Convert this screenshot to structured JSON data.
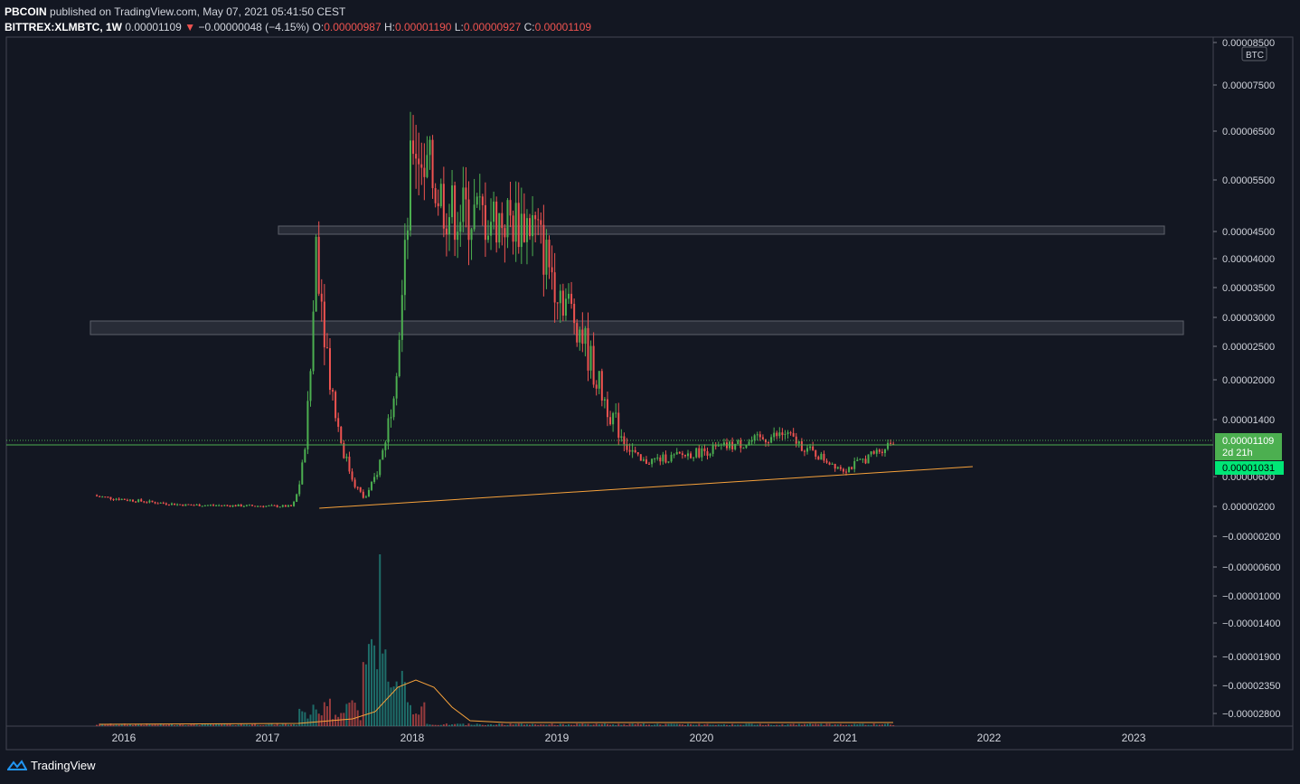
{
  "header": {
    "author": "PBCOIN",
    "published_text": "published on TradingView.com, May 07, 2021 05:41:50 CEST",
    "symbol": "BITTREX:XLMBTC, 1W",
    "last": "0.00001109",
    "change_arrow": "▼",
    "change": "−0.00000048 (−4.15%)",
    "o_label": "O:",
    "o": "0.00000987",
    "h_label": "H:",
    "h": "0.00001190",
    "l_label": "L:",
    "l": "0.00000927",
    "c_label": "C:",
    "c": "0.00001109"
  },
  "price_axis": {
    "currency": "BTC",
    "labels": [
      "0.00008500",
      "0.00007500",
      "0.00006500",
      "0.00005500",
      "0.00004500",
      "0.00004000",
      "0.00003500",
      "0.00003000",
      "0.00002500",
      "0.00002000",
      "0.00001400",
      "0.00000600",
      "0.00000200",
      "−0.00000200",
      "−0.00000600",
      "−0.00001000",
      "−0.00001400",
      "−0.00001900",
      "−0.00002350",
      "−0.00002800"
    ],
    "last_price_label": "0.00001109",
    "countdown": "2d 21h",
    "line_price_label": "0.00001031"
  },
  "time_axis": {
    "labels": [
      "2016",
      "2017",
      "2018",
      "2019",
      "2020",
      "2021",
      "2022",
      "2023"
    ]
  },
  "footer": {
    "brand": "TradingView"
  },
  "colors": {
    "background": "#131722",
    "up": "#26a69a",
    "up_candle": "#4caf50",
    "down": "#ef5350",
    "trendline": "#f7a23b",
    "zone": "#3a3e4a",
    "last_price": "#4caf50",
    "trend_label": "#00e676"
  },
  "chart_data": {
    "type": "candlestick",
    "timeframe": "1W",
    "x": [
      "2015-10",
      "2021-05"
    ],
    "y_scale": "log",
    "key_points": [
      {
        "date": "2015-10",
        "price": 3.5e-06
      },
      {
        "date": "2016-06",
        "price": 2.2e-06
      },
      {
        "date": "2017-03",
        "price": 2e-06
      },
      {
        "date": "2017-05",
        "price": 4.5e-05
      },
      {
        "date": "2017-09",
        "price": 3e-06
      },
      {
        "date": "2018-01",
        "price": 6.4e-05
      },
      {
        "date": "2018-04",
        "price": 4.9e-05
      },
      {
        "date": "2018-11",
        "price": 4.65e-05
      },
      {
        "date": "2019-03",
        "price": 2.8e-05
      },
      {
        "date": "2019-08",
        "price": 8e-06
      },
      {
        "date": "2020-08",
        "price": 1.2e-05
      },
      {
        "date": "2021-01",
        "price": 7e-06
      },
      {
        "date": "2021-05",
        "price": 1.109e-05
      }
    ],
    "resistance_zones": [
      {
        "from": "2017-03",
        "to": "2023-03",
        "low": 4.4e-05,
        "high": 4.6e-05
      },
      {
        "from": "2015-10",
        "to": "2023-05",
        "low": 2.7e-05,
        "high": 2.9e-05
      }
    ],
    "trendline": {
      "from": {
        "date": "2017-03",
        "price": 2e-06
      },
      "to": {
        "date": "2021-12",
        "price": 1.05e-05
      }
    },
    "volume_peak_date": "2017-10"
  }
}
